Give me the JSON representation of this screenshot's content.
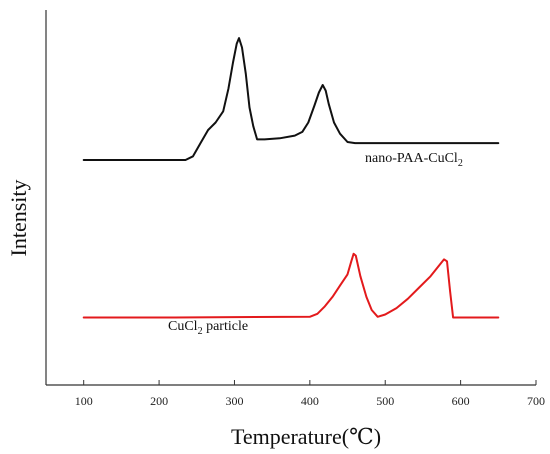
{
  "chart_data": {
    "type": "line",
    "title": "",
    "xlabel": "Temperature(℃)",
    "ylabel": "Intensity",
    "xlim": [
      50,
      700
    ],
    "x_ticks": [
      100,
      200,
      300,
      400,
      500,
      600,
      700
    ],
    "y_ticks": [],
    "grid": false,
    "legend": "none",
    "series": [
      {
        "name": "nano-PAA-CuCl₂",
        "label_base": "nano-PAA-CuCl",
        "label_sub": "2",
        "color": "#111111",
        "points": [
          [
            100,
            0.6
          ],
          [
            235,
            0.6
          ],
          [
            245,
            0.61
          ],
          [
            255,
            0.645
          ],
          [
            265,
            0.68
          ],
          [
            275,
            0.7
          ],
          [
            285,
            0.73
          ],
          [
            292,
            0.79
          ],
          [
            298,
            0.86
          ],
          [
            303,
            0.91
          ],
          [
            306,
            0.925
          ],
          [
            310,
            0.9
          ],
          [
            315,
            0.83
          ],
          [
            320,
            0.74
          ],
          [
            325,
            0.69
          ],
          [
            330,
            0.655
          ],
          [
            340,
            0.655
          ],
          [
            360,
            0.658
          ],
          [
            380,
            0.665
          ],
          [
            390,
            0.675
          ],
          [
            398,
            0.7
          ],
          [
            406,
            0.745
          ],
          [
            412,
            0.78
          ],
          [
            417,
            0.8
          ],
          [
            421,
            0.785
          ],
          [
            425,
            0.75
          ],
          [
            432,
            0.7
          ],
          [
            440,
            0.67
          ],
          [
            450,
            0.648
          ],
          [
            460,
            0.645
          ],
          [
            650,
            0.645
          ]
        ]
      },
      {
        "name": "CuCl₂ particle",
        "label_base": "CuCl",
        "label_sub": "2",
        "label_rest": " particle",
        "color": "#e31a1c",
        "points": [
          [
            100,
            0.18
          ],
          [
            220,
            0.18
          ],
          [
            300,
            0.181
          ],
          [
            400,
            0.182
          ],
          [
            410,
            0.19
          ],
          [
            420,
            0.21
          ],
          [
            430,
            0.235
          ],
          [
            440,
            0.265
          ],
          [
            450,
            0.295
          ],
          [
            455,
            0.33
          ],
          [
            458,
            0.35
          ],
          [
            461,
            0.345
          ],
          [
            467,
            0.29
          ],
          [
            475,
            0.235
          ],
          [
            482,
            0.2
          ],
          [
            490,
            0.182
          ],
          [
            500,
            0.188
          ],
          [
            515,
            0.205
          ],
          [
            530,
            0.23
          ],
          [
            545,
            0.26
          ],
          [
            560,
            0.29
          ],
          [
            570,
            0.315
          ],
          [
            578,
            0.335
          ],
          [
            582,
            0.33
          ],
          [
            586,
            0.25
          ],
          [
            590,
            0.18
          ],
          [
            650,
            0.18
          ]
        ]
      }
    ]
  }
}
